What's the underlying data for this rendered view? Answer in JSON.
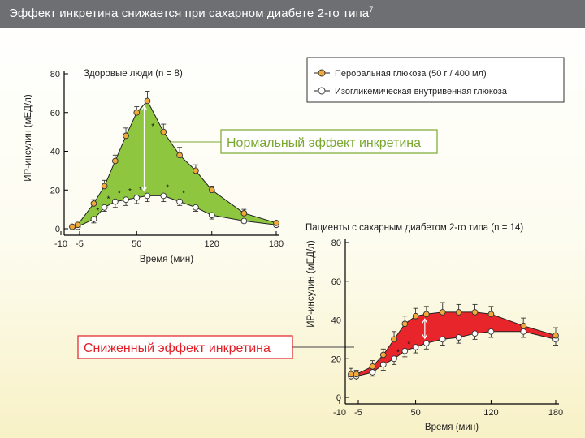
{
  "slide": {
    "title": "Эффект инкретина снижается при сахарном диабете 2-го типа",
    "title_sup": "7",
    "colors": {
      "title_bar": "#6d6f72",
      "green_fill": "#8ec63f",
      "red_fill": "#e8252b",
      "oral_marker": "#f2a93b",
      "iv_marker": "#ffffff",
      "normal_label": "#7aa82f",
      "reduced_label": "#e21e26"
    }
  },
  "legend": {
    "oral": "Пероральная глюкоза (50 г / 400 мл)",
    "iv": "Изогликемическая внутривенная глюкоза",
    "oral_icon": "orange-circle-marker",
    "iv_icon": "white-circle-marker"
  },
  "labels": {
    "normal_effect": "Нормальный эффект инкретина",
    "reduced_effect": "Сниженный  эффект инкретина"
  },
  "chart_data": [
    {
      "type": "area",
      "subtitle": "Здоровые люди (n = 8)",
      "xlabel": "Время (мин)",
      "ylabel": "ИР-инсулин (мЕД/л)",
      "xlim": [
        -10,
        180
      ],
      "ylim": [
        0,
        80
      ],
      "x_ticks": [
        -10,
        -5,
        50,
        120,
        180
      ],
      "x_tick_labels": [
        "-10",
        "-5",
        "50",
        "120",
        "180"
      ],
      "y_ticks": [
        0,
        20,
        40,
        60,
        80
      ],
      "fill_between": "green",
      "series": [
        {
          "name": "Пероральная глюкоза (50 г / 400 мл)",
          "x": [
            -10,
            -5,
            10,
            20,
            30,
            40,
            50,
            60,
            75,
            90,
            105,
            120,
            150,
            180
          ],
          "y": [
            1,
            2,
            13,
            22,
            35,
            48,
            60,
            66,
            50,
            38,
            30,
            20,
            8,
            3
          ],
          "err": [
            1,
            1,
            2,
            3,
            3,
            4,
            3,
            5,
            4,
            4,
            3,
            2,
            2,
            1
          ]
        },
        {
          "name": "Изогликемическая внутривенная глюкоза",
          "x": [
            -10,
            -5,
            10,
            20,
            30,
            40,
            50,
            60,
            75,
            90,
            105,
            120,
            150,
            180
          ],
          "y": [
            1,
            1,
            5,
            11,
            14,
            15,
            16,
            17,
            17,
            14,
            11,
            7,
            4,
            2
          ],
          "err": [
            1,
            1,
            2,
            2,
            3,
            3,
            3,
            3,
            3,
            2,
            2,
            2,
            1,
            1
          ]
        }
      ],
      "significance_markers": [
        "*",
        "*",
        "*",
        "*",
        "*",
        "*",
        "*"
      ],
      "peak_marker": "*"
    },
    {
      "type": "area",
      "subtitle": "Пациенты с сахарным диабетом 2-го типа (n = 14)",
      "xlabel": "Время (мин)",
      "ylabel": "ИР-инсулин (мЕД/л)",
      "xlim": [
        -10,
        180
      ],
      "ylim": [
        0,
        80
      ],
      "x_ticks": [
        -10,
        -5,
        50,
        120,
        180
      ],
      "x_tick_labels": [
        "-10",
        "-5",
        "50",
        "120",
        "180"
      ],
      "y_ticks": [
        0,
        20,
        40,
        60,
        80
      ],
      "fill_between": "red",
      "series": [
        {
          "name": "Пероральная глюкоза (50 г / 400 мл)",
          "x": [
            -10,
            -5,
            10,
            20,
            30,
            40,
            50,
            60,
            75,
            90,
            105,
            120,
            150,
            180
          ],
          "y": [
            12,
            12,
            16,
            22,
            30,
            38,
            42,
            43,
            44,
            44,
            44,
            43,
            37,
            32
          ],
          "err": [
            3,
            2,
            3,
            3,
            4,
            4,
            4,
            4,
            5,
            4,
            4,
            4,
            4,
            4
          ]
        },
        {
          "name": "Изогликемическая внутривенная глюкоза",
          "x": [
            -10,
            -5,
            10,
            20,
            30,
            40,
            50,
            60,
            75,
            90,
            105,
            120,
            150,
            180
          ],
          "y": [
            11,
            11,
            13,
            17,
            20,
            24,
            26,
            28,
            30,
            31,
            33,
            34,
            34,
            30
          ],
          "err": [
            2,
            2,
            2,
            3,
            3,
            3,
            3,
            3,
            3,
            3,
            3,
            3,
            3,
            3
          ]
        }
      ],
      "significance_markers": [
        "*",
        "*"
      ]
    }
  ]
}
